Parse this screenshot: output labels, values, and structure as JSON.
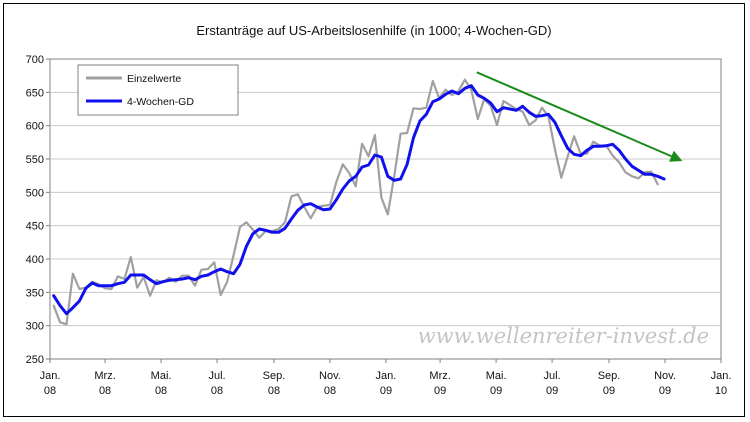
{
  "chart_data": {
    "type": "line",
    "title": "Erstanträge auf US-Arbeitslosenhilfe (in 1000; 4-Wochen-GD)",
    "ylim": [
      250,
      700
    ],
    "yticks": [
      250,
      300,
      350,
      400,
      450,
      500,
      550,
      600,
      650,
      700
    ],
    "xlim": [
      "2008-01-01",
      "2010-01-01"
    ],
    "xticks": [
      {
        "date": "2008-01-01",
        "line1": "Jan.",
        "line2": "08"
      },
      {
        "date": "2008-03-01",
        "line1": "Mrz.",
        "line2": "08"
      },
      {
        "date": "2008-05-01",
        "line1": "Mai.",
        "line2": "08"
      },
      {
        "date": "2008-07-01",
        "line1": "Jul.",
        "line2": "08"
      },
      {
        "date": "2008-09-01",
        "line1": "Sep.",
        "line2": "08"
      },
      {
        "date": "2008-11-01",
        "line1": "Nov.",
        "line2": "08"
      },
      {
        "date": "2009-01-01",
        "line1": "Jan.",
        "line2": "09"
      },
      {
        "date": "2009-03-01",
        "line1": "Mrz.",
        "line2": "09"
      },
      {
        "date": "2009-05-01",
        "line1": "Mai.",
        "line2": "09"
      },
      {
        "date": "2009-07-01",
        "line1": "Jul.",
        "line2": "09"
      },
      {
        "date": "2009-09-01",
        "line1": "Sep.",
        "line2": "09"
      },
      {
        "date": "2009-11-01",
        "line1": "Nov.",
        "line2": "09"
      },
      {
        "date": "2010-01-01",
        "line1": "Jan.",
        "line2": "10"
      }
    ],
    "grid": true,
    "legend_position": "top-left",
    "series": [
      {
        "name": "Einzelwerte",
        "color": "#a0a0a0",
        "points": [
          [
            "2008-01-05",
            330
          ],
          [
            "2008-01-12",
            305
          ],
          [
            "2008-01-19",
            302
          ],
          [
            "2008-01-26",
            378
          ],
          [
            "2008-02-02",
            355
          ],
          [
            "2008-02-09",
            357
          ],
          [
            "2008-02-16",
            366
          ],
          [
            "2008-02-23",
            362
          ],
          [
            "2008-03-01",
            356
          ],
          [
            "2008-03-08",
            355
          ],
          [
            "2008-03-15",
            374
          ],
          [
            "2008-03-22",
            370
          ],
          [
            "2008-03-29",
            403
          ],
          [
            "2008-04-05",
            357
          ],
          [
            "2008-04-12",
            373
          ],
          [
            "2008-04-19",
            345
          ],
          [
            "2008-04-26",
            368
          ],
          [
            "2008-05-03",
            365
          ],
          [
            "2008-05-10",
            372
          ],
          [
            "2008-05-17",
            366
          ],
          [
            "2008-05-24",
            375
          ],
          [
            "2008-05-31",
            375
          ],
          [
            "2008-06-07",
            360
          ],
          [
            "2008-06-14",
            384
          ],
          [
            "2008-06-21",
            385
          ],
          [
            "2008-06-28",
            395
          ],
          [
            "2008-07-05",
            346
          ],
          [
            "2008-07-12",
            366
          ],
          [
            "2008-07-19",
            406
          ],
          [
            "2008-07-26",
            448
          ],
          [
            "2008-08-02",
            455
          ],
          [
            "2008-08-09",
            444
          ],
          [
            "2008-08-16",
            432
          ],
          [
            "2008-08-23",
            442
          ],
          [
            "2008-08-30",
            442
          ],
          [
            "2008-09-06",
            445
          ],
          [
            "2008-09-13",
            455
          ],
          [
            "2008-09-20",
            494
          ],
          [
            "2008-09-27",
            497
          ],
          [
            "2008-10-04",
            478
          ],
          [
            "2008-10-11",
            461
          ],
          [
            "2008-10-18",
            478
          ],
          [
            "2008-10-25",
            480
          ],
          [
            "2008-11-01",
            481
          ],
          [
            "2008-11-08",
            516
          ],
          [
            "2008-11-15",
            542
          ],
          [
            "2008-11-22",
            529
          ],
          [
            "2008-11-29",
            509
          ],
          [
            "2008-12-06",
            573
          ],
          [
            "2008-12-13",
            554
          ],
          [
            "2008-12-20",
            586
          ],
          [
            "2008-12-27",
            492
          ],
          [
            "2009-01-03",
            467
          ],
          [
            "2009-01-10",
            524
          ],
          [
            "2009-01-17",
            588
          ],
          [
            "2009-01-24",
            589
          ],
          [
            "2009-01-31",
            626
          ],
          [
            "2009-02-07",
            625
          ],
          [
            "2009-02-14",
            627
          ],
          [
            "2009-02-21",
            667
          ],
          [
            "2009-02-28",
            641
          ],
          [
            "2009-03-07",
            654
          ],
          [
            "2009-03-14",
            646
          ],
          [
            "2009-03-21",
            652
          ],
          [
            "2009-03-28",
            669
          ],
          [
            "2009-04-04",
            654
          ],
          [
            "2009-04-11",
            610
          ],
          [
            "2009-04-18",
            640
          ],
          [
            "2009-04-25",
            630
          ],
          [
            "2009-05-02",
            601
          ],
          [
            "2009-05-09",
            637
          ],
          [
            "2009-05-16",
            631
          ],
          [
            "2009-05-23",
            625
          ],
          [
            "2009-05-30",
            621
          ],
          [
            "2009-06-06",
            601
          ],
          [
            "2009-06-13",
            608
          ],
          [
            "2009-06-20",
            627
          ],
          [
            "2009-06-27",
            614
          ],
          [
            "2009-07-04",
            565
          ],
          [
            "2009-07-11",
            522
          ],
          [
            "2009-07-18",
            554
          ],
          [
            "2009-07-25",
            584
          ],
          [
            "2009-08-01",
            558
          ],
          [
            "2009-08-08",
            558
          ],
          [
            "2009-08-15",
            576
          ],
          [
            "2009-08-22",
            570
          ],
          [
            "2009-08-29",
            570
          ],
          [
            "2009-09-05",
            555
          ],
          [
            "2009-09-12",
            545
          ],
          [
            "2009-09-19",
            530
          ],
          [
            "2009-09-26",
            524
          ],
          [
            "2009-10-03",
            521
          ],
          [
            "2009-10-10",
            530
          ],
          [
            "2009-10-17",
            531
          ],
          [
            "2009-10-24",
            512
          ]
        ]
      },
      {
        "name": "4-Wochen-GD",
        "color": "#1010ee",
        "points": [
          [
            "2008-01-05",
            345
          ],
          [
            "2008-01-12",
            330
          ],
          [
            "2008-01-19",
            318
          ],
          [
            "2008-01-26",
            327
          ],
          [
            "2008-02-02",
            337
          ],
          [
            "2008-02-09",
            356
          ],
          [
            "2008-02-16",
            364
          ],
          [
            "2008-02-23",
            360
          ],
          [
            "2008-03-01",
            360
          ],
          [
            "2008-03-08",
            360
          ],
          [
            "2008-03-15",
            363
          ],
          [
            "2008-03-22",
            365
          ],
          [
            "2008-03-29",
            376
          ],
          [
            "2008-04-05",
            376
          ],
          [
            "2008-04-12",
            376
          ],
          [
            "2008-04-19",
            369
          ],
          [
            "2008-04-26",
            363
          ],
          [
            "2008-05-03",
            366
          ],
          [
            "2008-05-10",
            368
          ],
          [
            "2008-05-17",
            369
          ],
          [
            "2008-05-24",
            370
          ],
          [
            "2008-05-31",
            372
          ],
          [
            "2008-06-07",
            369
          ],
          [
            "2008-06-14",
            374
          ],
          [
            "2008-06-21",
            376
          ],
          [
            "2008-06-28",
            381
          ],
          [
            "2008-07-05",
            385
          ],
          [
            "2008-07-12",
            381
          ],
          [
            "2008-07-19",
            378
          ],
          [
            "2008-07-26",
            392
          ],
          [
            "2008-08-02",
            419
          ],
          [
            "2008-08-09",
            438
          ],
          [
            "2008-08-16",
            445
          ],
          [
            "2008-08-23",
            443
          ],
          [
            "2008-08-30",
            440
          ],
          [
            "2008-09-06",
            440
          ],
          [
            "2008-09-13",
            446
          ],
          [
            "2008-09-20",
            460
          ],
          [
            "2008-09-27",
            473
          ],
          [
            "2008-10-04",
            481
          ],
          [
            "2008-10-11",
            483
          ],
          [
            "2008-10-18",
            478
          ],
          [
            "2008-10-25",
            474
          ],
          [
            "2008-11-01",
            475
          ],
          [
            "2008-11-08",
            489
          ],
          [
            "2008-11-15",
            505
          ],
          [
            "2008-11-22",
            517
          ],
          [
            "2008-11-29",
            524
          ],
          [
            "2008-12-06",
            538
          ],
          [
            "2008-12-13",
            541
          ],
          [
            "2008-12-20",
            556
          ],
          [
            "2008-12-27",
            553
          ],
          [
            "2009-01-03",
            524
          ],
          [
            "2009-01-10",
            518
          ],
          [
            "2009-01-17",
            520
          ],
          [
            "2009-01-24",
            542
          ],
          [
            "2009-01-31",
            582
          ],
          [
            "2009-02-07",
            607
          ],
          [
            "2009-02-14",
            617
          ],
          [
            "2009-02-21",
            636
          ],
          [
            "2009-02-28",
            640
          ],
          [
            "2009-03-07",
            647
          ],
          [
            "2009-03-14",
            652
          ],
          [
            "2009-03-21",
            648
          ],
          [
            "2009-03-28",
            656
          ],
          [
            "2009-04-04",
            660
          ],
          [
            "2009-04-11",
            646
          ],
          [
            "2009-04-18",
            641
          ],
          [
            "2009-04-25",
            634
          ],
          [
            "2009-05-02",
            621
          ],
          [
            "2009-05-09",
            627
          ],
          [
            "2009-05-16",
            625
          ],
          [
            "2009-05-23",
            623
          ],
          [
            "2009-05-30",
            629
          ],
          [
            "2009-06-06",
            620
          ],
          [
            "2009-06-13",
            614
          ],
          [
            "2009-06-20",
            615
          ],
          [
            "2009-06-27",
            617
          ],
          [
            "2009-07-04",
            605
          ],
          [
            "2009-07-11",
            585
          ],
          [
            "2009-07-18",
            566
          ],
          [
            "2009-07-25",
            557
          ],
          [
            "2009-08-01",
            555
          ],
          [
            "2009-08-08",
            563
          ],
          [
            "2009-08-15",
            569
          ],
          [
            "2009-08-22",
            569
          ],
          [
            "2009-08-29",
            570
          ],
          [
            "2009-09-05",
            572
          ],
          [
            "2009-09-12",
            563
          ],
          [
            "2009-09-19",
            550
          ],
          [
            "2009-09-26",
            539
          ],
          [
            "2009-10-03",
            533
          ],
          [
            "2009-10-10",
            527
          ],
          [
            "2009-10-17",
            527
          ],
          [
            "2009-10-24",
            524
          ],
          [
            "2009-10-31",
            520
          ]
        ]
      }
    ],
    "annotations": [
      {
        "type": "trend-arrow",
        "color": "#1a8a1a",
        "from": [
          "2009-04-10",
          680
        ],
        "to": [
          "2009-11-20",
          547
        ]
      }
    ],
    "watermark": "www.wellenreiter-invest.de"
  }
}
